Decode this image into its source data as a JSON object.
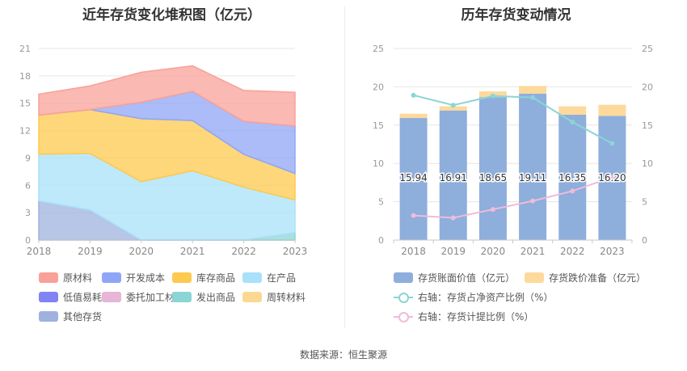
{
  "source_text": "数据来源：恒生聚源",
  "chart_data": [
    {
      "type": "area",
      "stacked": true,
      "title": "近年存货变化堆积图（亿元）",
      "categories": [
        "2018",
        "2019",
        "2020",
        "2021",
        "2022",
        "2023"
      ],
      "yticks": [
        "0",
        "3",
        "6",
        "9",
        "12",
        "15",
        "18",
        "21"
      ],
      "ylim": [
        0,
        21
      ],
      "grid": true,
      "legend_position": "bottom",
      "series": [
        {
          "name": "原材料",
          "color": "#f8a198",
          "values": [
            2.3,
            2.6,
            3.3,
            2.8,
            3.4,
            3.7
          ]
        },
        {
          "name": "开发成本",
          "color": "#8fa6f7",
          "values": [
            0.0,
            0.0,
            1.8,
            3.2,
            3.6,
            5.2
          ]
        },
        {
          "name": "库存商品",
          "color": "#fdc94e",
          "values": [
            4.3,
            4.8,
            6.9,
            5.5,
            3.6,
            2.9
          ]
        },
        {
          "name": "在产品",
          "color": "#a8e1fa",
          "values": [
            5.1,
            6.2,
            6.4,
            7.6,
            5.8,
            3.6
          ]
        },
        {
          "name": "低值易耗品",
          "color": "#7f84f2",
          "values": [
            0,
            0,
            0,
            0,
            0,
            0
          ]
        },
        {
          "name": "委托加工材料",
          "color": "#e6b6d6",
          "values": [
            0,
            0,
            0,
            0,
            0,
            0
          ]
        },
        {
          "name": "发出商品",
          "color": "#8ad5d5",
          "values": [
            0.0,
            0.0,
            0.0,
            0.0,
            0.0,
            0.8
          ]
        },
        {
          "name": "周转材料",
          "color": "#fbd992",
          "values": [
            0,
            0,
            0,
            0,
            0,
            0
          ]
        },
        {
          "name": "其他存货",
          "color": "#9fb2dd",
          "values": [
            4.3,
            3.3,
            0.0,
            0.0,
            0.0,
            0.0
          ]
        }
      ]
    },
    {
      "type": "bar",
      "stacked": true,
      "title": "历年存货变动情况",
      "categories": [
        "2018",
        "2019",
        "2020",
        "2021",
        "2022",
        "2023"
      ],
      "yticks_left": [
        "0",
        "5",
        "10",
        "15",
        "20",
        "25"
      ],
      "yticks_right": [
        "0",
        "5",
        "10",
        "15",
        "20",
        "25"
      ],
      "ylim": [
        0,
        25
      ],
      "grid": true,
      "legend_position": "bottom",
      "series": [
        {
          "name": "存货账面价值（亿元）",
          "color": "#8eaedc",
          "values": [
            15.94,
            16.91,
            18.65,
            19.11,
            16.35,
            16.2
          ],
          "labels": [
            "15.94",
            "16.91",
            "18.65",
            "19.11",
            "16.35",
            "16.20"
          ]
        },
        {
          "name": "存货跌价准备（亿元）",
          "color": "#fdd99c",
          "values": [
            0.55,
            0.55,
            0.75,
            1.0,
            1.1,
            1.45
          ]
        }
      ],
      "lines": [
        {
          "name": "右轴：存货占净资产比例（%）",
          "color": "#8ad5d5",
          "values": [
            18.9,
            17.6,
            18.8,
            18.6,
            15.4,
            12.6
          ]
        },
        {
          "name": "右轴：存货计提比例（%）",
          "color": "#efbcd9",
          "values": [
            3.2,
            2.9,
            4.0,
            5.1,
            6.4,
            8.2
          ]
        }
      ]
    }
  ]
}
